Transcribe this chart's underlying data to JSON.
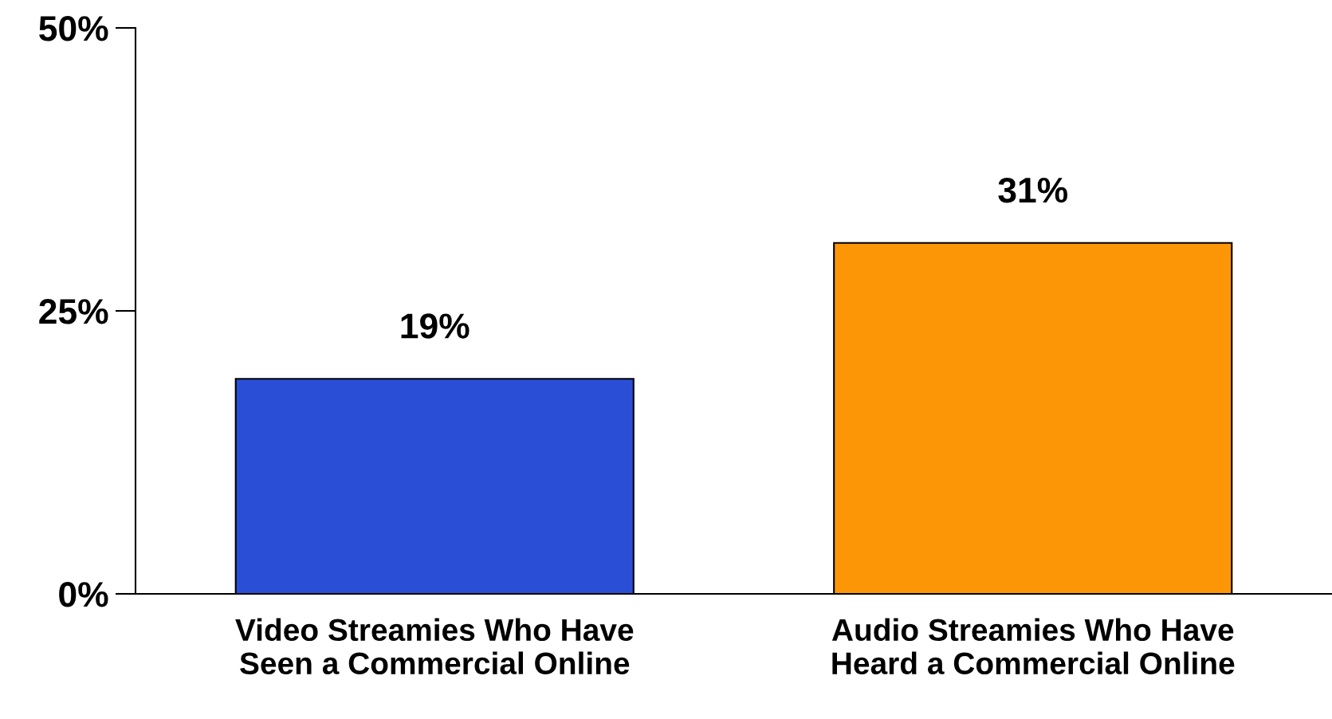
{
  "chart_data": {
    "type": "bar",
    "categories": [
      "Video Streamies Who Have\nSeen a Commercial Online",
      "Audio Streamies Who Have\nHeard a Commercial Online"
    ],
    "values": [
      19,
      31
    ],
    "colors": [
      "#2a4fd6",
      "#fd9606"
    ],
    "ylim": [
      0,
      50
    ],
    "yticks": [
      {
        "value": 0,
        "label": "0%"
      },
      {
        "value": 25,
        "label": "25%"
      },
      {
        "value": 50,
        "label": "50%"
      }
    ],
    "value_labels": [
      "19%",
      "31%"
    ],
    "grid": false,
    "legend": false
  }
}
